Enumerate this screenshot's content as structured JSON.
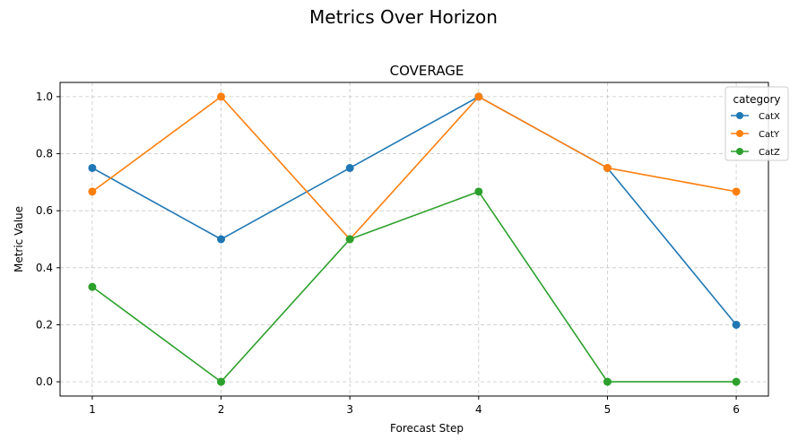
{
  "figure": {
    "suptitle": "Metrics Over Horizon"
  },
  "chart_data": {
    "type": "line",
    "title": "COVERAGE",
    "xlabel": "Forecast Step",
    "ylabel": "Metric Value",
    "x": [
      1,
      2,
      3,
      4,
      5,
      6
    ],
    "xlim": [
      0.75,
      6.25
    ],
    "ylim": [
      -0.05,
      1.05
    ],
    "xticks": [
      1,
      2,
      3,
      4,
      5,
      6
    ],
    "yticks": [
      0.0,
      0.2,
      0.4,
      0.6,
      0.8,
      1.0
    ],
    "ytick_labels": [
      "0.0",
      "0.2",
      "0.4",
      "0.6",
      "0.8",
      "1.0"
    ],
    "grid": true,
    "legend": {
      "title": "category",
      "position": "top-right"
    },
    "series": [
      {
        "name": "CatX",
        "color": "#1f77b4",
        "values": [
          0.75,
          0.5,
          0.75,
          1.0,
          0.75,
          0.2
        ]
      },
      {
        "name": "CatY",
        "color": "#ff7f0e",
        "values": [
          0.667,
          1.0,
          0.5,
          1.0,
          0.75,
          0.667
        ]
      },
      {
        "name": "CatZ",
        "color": "#2ca02c",
        "values": [
          0.333,
          0.0,
          0.5,
          0.667,
          0.0,
          0.0
        ]
      }
    ]
  }
}
